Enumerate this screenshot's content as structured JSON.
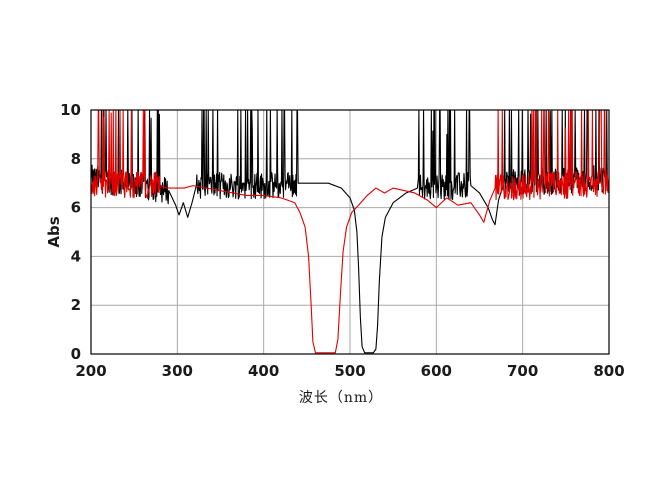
{
  "chart_data": {
    "type": "line",
    "title": "",
    "xlabel": "波长（nm）",
    "ylabel": "Abs",
    "xlim": [
      200,
      800
    ],
    "ylim": [
      0,
      10
    ],
    "xticks": [
      200,
      300,
      400,
      500,
      600,
      700,
      800
    ],
    "yticks": [
      0,
      2,
      4,
      6,
      8,
      10
    ],
    "grid": true,
    "legend": "none",
    "series": [
      {
        "color": "#000000",
        "values": [
          {
            "x": 200,
            "y": 7.2,
            "noise": true
          },
          {
            "x": 290,
            "y": 6.7,
            "noise": true
          },
          {
            "x": 298,
            "y": 6.1
          },
          {
            "x": 302,
            "y": 5.7
          },
          {
            "x": 307,
            "y": 6.2
          },
          {
            "x": 312,
            "y": 5.6
          },
          {
            "x": 317,
            "y": 6.2
          },
          {
            "x": 322,
            "y": 6.9,
            "noise": true
          },
          {
            "x": 420,
            "y": 6.9,
            "noise": true
          },
          {
            "x": 440,
            "y": 7.0,
            "noise": true
          },
          {
            "x": 475,
            "y": 7.0
          },
          {
            "x": 490,
            "y": 6.8
          },
          {
            "x": 500,
            "y": 6.4
          },
          {
            "x": 505,
            "y": 5.9
          },
          {
            "x": 508,
            "y": 5.0
          },
          {
            "x": 510,
            "y": 3.5
          },
          {
            "x": 512,
            "y": 1.5
          },
          {
            "x": 514,
            "y": 0.3
          },
          {
            "x": 517,
            "y": 0.05
          },
          {
            "x": 527,
            "y": 0.05
          },
          {
            "x": 530,
            "y": 0.2
          },
          {
            "x": 532,
            "y": 1.2
          },
          {
            "x": 534,
            "y": 3.0
          },
          {
            "x": 537,
            "y": 4.8
          },
          {
            "x": 541,
            "y": 5.6
          },
          {
            "x": 550,
            "y": 6.2
          },
          {
            "x": 565,
            "y": 6.6
          },
          {
            "x": 578,
            "y": 6.8,
            "noise": true
          },
          {
            "x": 640,
            "y": 6.9,
            "noise": true
          },
          {
            "x": 650,
            "y": 6.6
          },
          {
            "x": 660,
            "y": 6.0
          },
          {
            "x": 665,
            "y": 5.5
          },
          {
            "x": 668,
            "y": 5.3
          },
          {
            "x": 672,
            "y": 6.3
          },
          {
            "x": 678,
            "y": 7.0,
            "noise": true
          },
          {
            "x": 800,
            "y": 7.2,
            "noise": true
          }
        ]
      },
      {
        "color": "#e00000",
        "values": [
          {
            "x": 200,
            "y": 7.0,
            "noise": true
          },
          {
            "x": 280,
            "y": 6.9,
            "noise": true
          },
          {
            "x": 288,
            "y": 6.8
          },
          {
            "x": 298,
            "y": 6.8
          },
          {
            "x": 308,
            "y": 6.8
          },
          {
            "x": 318,
            "y": 6.9,
            "noise": true
          },
          {
            "x": 380,
            "y": 6.5
          },
          {
            "x": 400,
            "y": 6.5
          },
          {
            "x": 420,
            "y": 6.4
          },
          {
            "x": 428,
            "y": 6.3
          },
          {
            "x": 436,
            "y": 6.2
          },
          {
            "x": 442,
            "y": 5.8
          },
          {
            "x": 448,
            "y": 5.2
          },
          {
            "x": 452,
            "y": 4.0
          },
          {
            "x": 455,
            "y": 2.0
          },
          {
            "x": 457,
            "y": 0.5
          },
          {
            "x": 460,
            "y": 0.05
          },
          {
            "x": 483,
            "y": 0.05
          },
          {
            "x": 486,
            "y": 0.6
          },
          {
            "x": 489,
            "y": 2.5
          },
          {
            "x": 492,
            "y": 4.2
          },
          {
            "x": 496,
            "y": 5.2
          },
          {
            "x": 502,
            "y": 5.8
          },
          {
            "x": 510,
            "y": 6.1
          },
          {
            "x": 520,
            "y": 6.5
          },
          {
            "x": 530,
            "y": 6.8
          },
          {
            "x": 540,
            "y": 6.6
          },
          {
            "x": 550,
            "y": 6.8,
            "noise": true
          },
          {
            "x": 575,
            "y": 6.6
          },
          {
            "x": 590,
            "y": 6.3
          },
          {
            "x": 600,
            "y": 6.0
          },
          {
            "x": 612,
            "y": 6.4
          },
          {
            "x": 625,
            "y": 6.1
          },
          {
            "x": 640,
            "y": 6.2
          },
          {
            "x": 650,
            "y": 5.7
          },
          {
            "x": 655,
            "y": 5.4
          },
          {
            "x": 662,
            "y": 6.3
          },
          {
            "x": 668,
            "y": 6.8,
            "noise": true
          },
          {
            "x": 800,
            "y": 7.0,
            "noise": true
          }
        ]
      }
    ]
  }
}
